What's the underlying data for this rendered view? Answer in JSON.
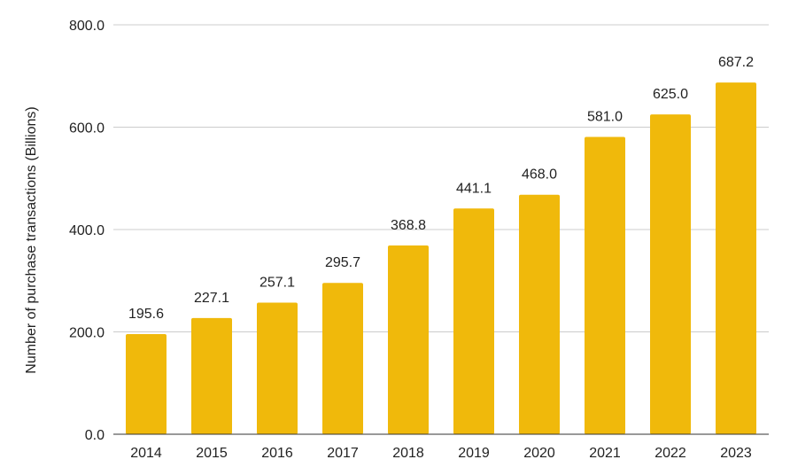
{
  "chart_data": {
    "type": "bar",
    "title": "",
    "xlabel": "",
    "ylabel": "Number of purchase transactions (Billions)",
    "categories": [
      "2014",
      "2015",
      "2016",
      "2017",
      "2018",
      "2019",
      "2020",
      "2021",
      "2022",
      "2023"
    ],
    "values": [
      195.6,
      227.1,
      257.1,
      295.7,
      368.8,
      441.1,
      468.0,
      581.0,
      625.0,
      687.2
    ],
    "data_labels": [
      "195.6",
      "227.1",
      "257.1",
      "295.7",
      "368.8",
      "441.1",
      "468.0",
      "581.0",
      "625.0",
      "687.2"
    ],
    "ylim": [
      0,
      800
    ],
    "yticks": [
      0,
      200,
      400,
      600,
      800
    ],
    "ytick_labels": [
      "0.0",
      "200.0",
      "400.0",
      "600.0",
      "800.0"
    ],
    "grid": true,
    "legend": "none",
    "colors": {
      "bar": "#F0B90B",
      "grid": "#CCCCCC",
      "baseline": "#333333",
      "text": "#222222"
    }
  }
}
